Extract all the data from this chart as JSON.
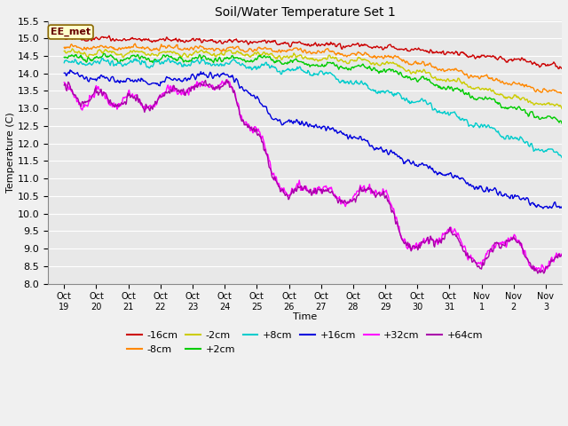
{
  "title": "Soil/Water Temperature Set 1",
  "xlabel": "Time",
  "ylabel": "Temperature (C)",
  "ylim": [
    8.0,
    15.5
  ],
  "yticks": [
    8.0,
    8.5,
    9.0,
    9.5,
    10.0,
    10.5,
    11.0,
    11.5,
    12.0,
    12.5,
    13.0,
    13.5,
    14.0,
    14.5,
    15.0,
    15.5
  ],
  "xtick_labels": [
    "Oct 19",
    "Oct 20",
    "Oct 21",
    "Oct 22",
    "Oct 23",
    "Oct 24",
    "Oct 25",
    "Oct 26",
    "Oct 27",
    "Oct 28",
    "Oct 29",
    "Oct 30",
    "Oct 31",
    "Nov 1",
    "Nov 2",
    "Nov 3"
  ],
  "colors": {
    "m16cm": "#cc0000",
    "m8cm": "#ff8800",
    "m2cm": "#cccc00",
    "p2cm": "#00cc00",
    "p8cm": "#00cccc",
    "p16cm": "#0000dd",
    "p32cm": "#ff00ff",
    "p64cm": "#aa00aa"
  },
  "labels": [
    "-16cm",
    "-8cm",
    "-2cm",
    "+2cm",
    "+8cm",
    "+16cm",
    "+32cm",
    "+64cm"
  ],
  "bg_color": "#e8e8e8",
  "annotation_text": "EE_met",
  "annotation_bg": "#ffffcc",
  "annotation_border": "#886600"
}
